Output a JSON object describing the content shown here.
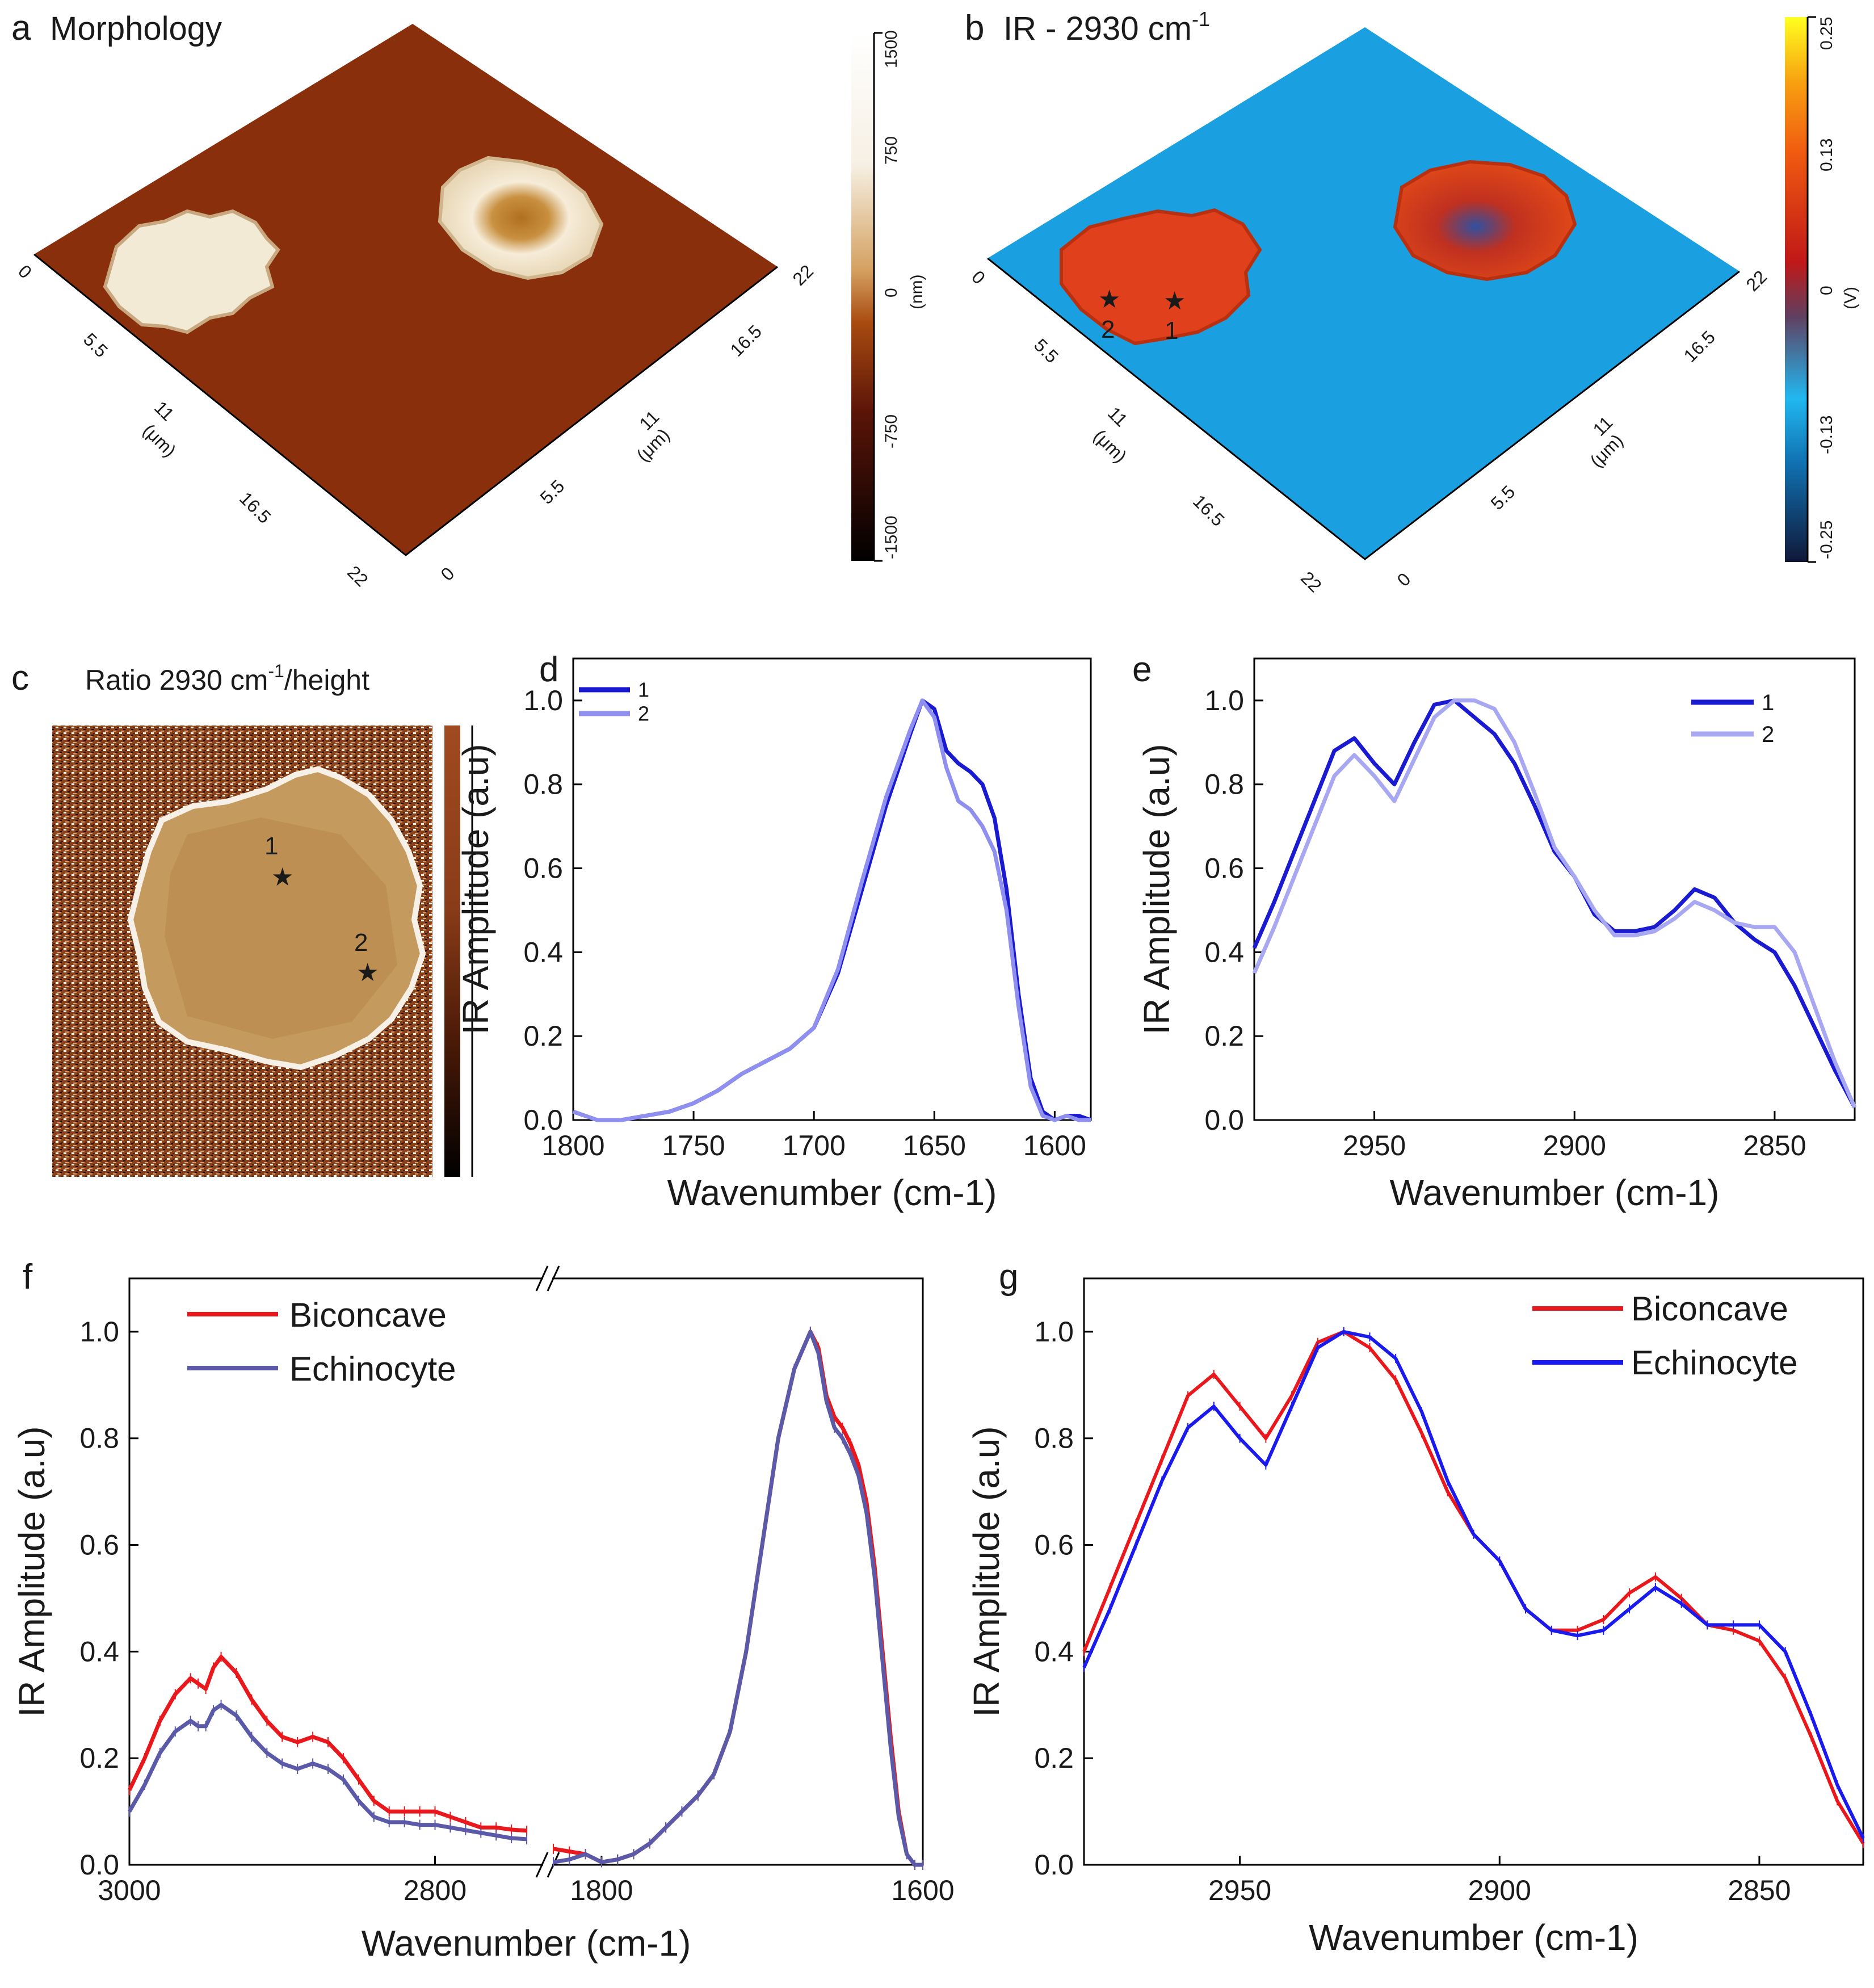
{
  "panels": {
    "a": {
      "letter": "a",
      "title": "Morphology",
      "colorbar_ticks": [
        "1500",
        "750",
        "0",
        "-750",
        "-1500"
      ],
      "colorbar_unit": "(nm)",
      "axis_ticks": [
        "0",
        "5.5",
        "11",
        "16.5",
        "22"
      ],
      "axis_unit": "(μm)",
      "colors": {
        "substrate": "#8a2f0c",
        "cell": "#f4ead8"
      }
    },
    "b": {
      "letter": "b",
      "title_main": "IR - 2930 cm",
      "title_sup": "-1",
      "colorbar_ticks": [
        "0.25",
        "0.13",
        "0",
        "-0.13",
        "-0.25"
      ],
      "colorbar_unit": "(V)",
      "axis_ticks": [
        "0",
        "5.5",
        "11",
        "16.5",
        "22"
      ],
      "axis_unit": "(μm)",
      "point_labels": [
        "1",
        "2"
      ],
      "colors": {
        "substrate": "#1aa0e0",
        "cell": "#e0401c"
      }
    },
    "c": {
      "letter": "c",
      "title_main": "Ratio 2930 cm",
      "title_sup": "-1",
      "title_tail": "/height",
      "point_labels": [
        "1",
        "2"
      ]
    }
  },
  "chart_data": [
    {
      "id": "d",
      "type": "line",
      "letter": "d",
      "xlabel": "Wavenumber (cm-1)",
      "ylabel": "IR Amplitude (a.u)",
      "xlim": [
        1800,
        1585
      ],
      "ylim": [
        0,
        1.1
      ],
      "xticks": [
        1800,
        1750,
        1700,
        1650,
        1600
      ],
      "yticks": [
        0.0,
        0.2,
        0.4,
        0.6,
        0.8,
        1.0
      ],
      "legend_position": "top-left",
      "series": [
        {
          "name": "1",
          "color": "#1a1ad0",
          "x": [
            1800,
            1790,
            1780,
            1770,
            1760,
            1750,
            1740,
            1730,
            1720,
            1710,
            1700,
            1690,
            1680,
            1670,
            1660,
            1655,
            1650,
            1645,
            1640,
            1635,
            1630,
            1625,
            1620,
            1615,
            1610,
            1605,
            1600,
            1595,
            1590,
            1585
          ],
          "y": [
            0.02,
            0.0,
            0.0,
            0.01,
            0.02,
            0.04,
            0.07,
            0.11,
            0.14,
            0.17,
            0.22,
            0.35,
            0.55,
            0.75,
            0.92,
            1.0,
            0.98,
            0.88,
            0.85,
            0.83,
            0.8,
            0.72,
            0.55,
            0.3,
            0.1,
            0.02,
            0.0,
            0.01,
            0.01,
            0.0
          ]
        },
        {
          "name": "2",
          "color": "#8f8ff0",
          "x": [
            1800,
            1790,
            1780,
            1770,
            1760,
            1750,
            1740,
            1730,
            1720,
            1710,
            1700,
            1690,
            1680,
            1670,
            1660,
            1655,
            1650,
            1645,
            1640,
            1635,
            1630,
            1625,
            1620,
            1615,
            1610,
            1605,
            1600,
            1595,
            1590,
            1585
          ],
          "y": [
            0.02,
            0.0,
            0.0,
            0.01,
            0.02,
            0.04,
            0.07,
            0.11,
            0.14,
            0.17,
            0.22,
            0.36,
            0.57,
            0.77,
            0.93,
            1.0,
            0.96,
            0.84,
            0.76,
            0.74,
            0.7,
            0.64,
            0.5,
            0.27,
            0.08,
            0.01,
            0.0,
            0.01,
            0.0,
            0.0
          ]
        }
      ]
    },
    {
      "id": "e",
      "type": "line",
      "letter": "e",
      "xlabel": "Wavenumber (cm-1)",
      "ylabel": "IR Amplitude (a.u)",
      "xlim": [
        2980,
        2830
      ],
      "ylim": [
        0,
        1.1
      ],
      "xticks": [
        2950,
        2900,
        2850
      ],
      "yticks": [
        0.0,
        0.2,
        0.4,
        0.6,
        0.8,
        1.0
      ],
      "legend_position": "top-right",
      "series": [
        {
          "name": "1",
          "color": "#1a1ad0",
          "x": [
            2980,
            2975,
            2970,
            2965,
            2960,
            2955,
            2950,
            2945,
            2940,
            2935,
            2930,
            2925,
            2920,
            2915,
            2910,
            2905,
            2900,
            2895,
            2890,
            2885,
            2880,
            2875,
            2870,
            2865,
            2860,
            2855,
            2850,
            2845,
            2840,
            2835,
            2830
          ],
          "y": [
            0.41,
            0.52,
            0.64,
            0.76,
            0.88,
            0.91,
            0.85,
            0.8,
            0.9,
            0.99,
            1.0,
            0.96,
            0.92,
            0.85,
            0.75,
            0.64,
            0.58,
            0.49,
            0.45,
            0.45,
            0.46,
            0.5,
            0.55,
            0.53,
            0.47,
            0.43,
            0.4,
            0.32,
            0.22,
            0.12,
            0.03
          ]
        },
        {
          "name": "2",
          "color": "#a8a8f2",
          "x": [
            2980,
            2975,
            2970,
            2965,
            2960,
            2955,
            2950,
            2945,
            2940,
            2935,
            2930,
            2925,
            2920,
            2915,
            2910,
            2905,
            2900,
            2895,
            2890,
            2885,
            2880,
            2875,
            2870,
            2865,
            2860,
            2855,
            2850,
            2845,
            2840,
            2835,
            2830
          ],
          "y": [
            0.35,
            0.46,
            0.58,
            0.7,
            0.82,
            0.87,
            0.82,
            0.76,
            0.86,
            0.96,
            1.0,
            1.0,
            0.98,
            0.9,
            0.78,
            0.65,
            0.58,
            0.5,
            0.44,
            0.44,
            0.45,
            0.48,
            0.52,
            0.5,
            0.47,
            0.46,
            0.46,
            0.4,
            0.27,
            0.14,
            0.03
          ]
        }
      ]
    },
    {
      "id": "f",
      "type": "line",
      "letter": "f",
      "broken_x_axis": true,
      "xlabel": "Wavenumber (cm-1)",
      "ylabel": "IR Amplitude (a.u)",
      "segments": [
        {
          "xlim": [
            3000,
            2730
          ],
          "xticks": [
            3000,
            2800
          ]
        },
        {
          "xlim": [
            1830,
            1600
          ],
          "xticks": [
            1800,
            1600
          ]
        }
      ],
      "ylim": [
        0,
        1.1
      ],
      "yticks": [
        0.0,
        0.2,
        0.4,
        0.6,
        0.8,
        1.0
      ],
      "legend_position": "top-left",
      "series": [
        {
          "name": "Biconcave",
          "color": "#e8181c",
          "high": {
            "x": [
              3000,
              2990,
              2980,
              2970,
              2960,
              2955,
              2950,
              2945,
              2940,
              2930,
              2920,
              2910,
              2900,
              2890,
              2880,
              2870,
              2860,
              2850,
              2840,
              2830,
              2820,
              2810,
              2800,
              2790,
              2780,
              2770,
              2760,
              2750,
              2740
            ],
            "y": [
              0.14,
              0.2,
              0.27,
              0.32,
              0.35,
              0.34,
              0.33,
              0.37,
              0.39,
              0.36,
              0.31,
              0.27,
              0.24,
              0.23,
              0.24,
              0.23,
              0.2,
              0.16,
              0.12,
              0.1,
              0.1,
              0.1,
              0.1,
              0.09,
              0.08,
              0.07,
              0.07,
              0.066,
              0.064
            ]
          },
          "low": {
            "x": [
              1830,
              1820,
              1810,
              1800,
              1790,
              1780,
              1770,
              1760,
              1750,
              1740,
              1730,
              1720,
              1710,
              1700,
              1690,
              1680,
              1670,
              1665,
              1660,
              1655,
              1650,
              1645,
              1640,
              1635,
              1630,
              1625,
              1620,
              1615,
              1610,
              1605,
              1600
            ],
            "y": [
              0.03,
              0.025,
              0.02,
              0.005,
              0.01,
              0.02,
              0.04,
              0.07,
              0.1,
              0.13,
              0.17,
              0.25,
              0.4,
              0.6,
              0.8,
              0.93,
              1.0,
              0.97,
              0.88,
              0.84,
              0.82,
              0.79,
              0.75,
              0.68,
              0.56,
              0.4,
              0.24,
              0.1,
              0.02,
              0.0,
              0.0
            ]
          }
        },
        {
          "name": "Echinocyte",
          "color": "#5a5aa8",
          "high": {
            "x": [
              3000,
              2990,
              2980,
              2970,
              2960,
              2955,
              2950,
              2945,
              2940,
              2930,
              2920,
              2910,
              2900,
              2890,
              2880,
              2870,
              2860,
              2850,
              2840,
              2830,
              2820,
              2810,
              2800,
              2790,
              2780,
              2770,
              2760,
              2750,
              2740
            ],
            "y": [
              0.1,
              0.15,
              0.21,
              0.25,
              0.27,
              0.26,
              0.26,
              0.29,
              0.3,
              0.28,
              0.24,
              0.21,
              0.19,
              0.18,
              0.19,
              0.18,
              0.16,
              0.12,
              0.09,
              0.08,
              0.08,
              0.075,
              0.075,
              0.07,
              0.065,
              0.06,
              0.055,
              0.05,
              0.048
            ]
          },
          "low": {
            "x": [
              1830,
              1820,
              1810,
              1800,
              1790,
              1780,
              1770,
              1760,
              1750,
              1740,
              1730,
              1720,
              1710,
              1700,
              1690,
              1680,
              1670,
              1665,
              1660,
              1655,
              1650,
              1645,
              1640,
              1635,
              1630,
              1625,
              1620,
              1615,
              1610,
              1605,
              1600
            ],
            "y": [
              0.005,
              0.01,
              0.02,
              0.005,
              0.01,
              0.02,
              0.04,
              0.07,
              0.1,
              0.13,
              0.17,
              0.25,
              0.4,
              0.6,
              0.8,
              0.93,
              1.0,
              0.96,
              0.87,
              0.82,
              0.8,
              0.77,
              0.73,
              0.66,
              0.54,
              0.38,
              0.22,
              0.09,
              0.02,
              0.0,
              0.0
            ]
          }
        }
      ]
    },
    {
      "id": "g",
      "type": "line",
      "letter": "g",
      "xlabel": "Wavenumber (cm-1)",
      "ylabel": "IR Amplitude (a.u)",
      "xlim": [
        2980,
        2830
      ],
      "ylim": [
        0,
        1.1
      ],
      "xticks": [
        2950,
        2900,
        2850
      ],
      "yticks": [
        0.0,
        0.2,
        0.4,
        0.6,
        0.8,
        1.0
      ],
      "legend_position": "top-right",
      "series": [
        {
          "name": "Biconcave",
          "color": "#e8181c",
          "x": [
            2980,
            2975,
            2970,
            2965,
            2960,
            2955,
            2950,
            2945,
            2940,
            2935,
            2930,
            2925,
            2920,
            2915,
            2910,
            2905,
            2900,
            2895,
            2890,
            2885,
            2880,
            2875,
            2870,
            2865,
            2860,
            2855,
            2850,
            2845,
            2840,
            2835,
            2830
          ],
          "y": [
            0.4,
            0.52,
            0.64,
            0.76,
            0.88,
            0.92,
            0.86,
            0.8,
            0.88,
            0.98,
            1.0,
            0.97,
            0.91,
            0.81,
            0.7,
            0.62,
            0.57,
            0.48,
            0.44,
            0.44,
            0.46,
            0.51,
            0.54,
            0.5,
            0.45,
            0.44,
            0.42,
            0.35,
            0.24,
            0.12,
            0.04
          ]
        },
        {
          "name": "Echinocyte",
          "color": "#1a1aec",
          "x": [
            2980,
            2975,
            2970,
            2965,
            2960,
            2955,
            2950,
            2945,
            2940,
            2935,
            2930,
            2925,
            2920,
            2915,
            2910,
            2905,
            2900,
            2895,
            2890,
            2885,
            2880,
            2875,
            2870,
            2865,
            2860,
            2855,
            2850,
            2845,
            2840,
            2835,
            2830
          ],
          "y": [
            0.37,
            0.48,
            0.6,
            0.72,
            0.82,
            0.86,
            0.8,
            0.75,
            0.86,
            0.97,
            1.0,
            0.99,
            0.95,
            0.85,
            0.72,
            0.62,
            0.57,
            0.48,
            0.44,
            0.43,
            0.44,
            0.48,
            0.52,
            0.49,
            0.45,
            0.45,
            0.45,
            0.4,
            0.28,
            0.15,
            0.05
          ]
        }
      ]
    }
  ]
}
